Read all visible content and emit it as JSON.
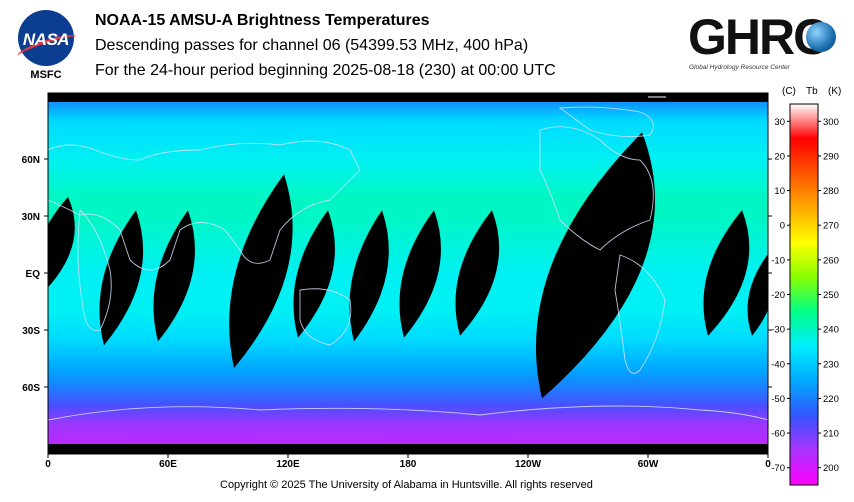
{
  "header": {
    "title": "NOAA-15 AMSU-A Brightness Temperatures",
    "subtitle": "Descending passes for channel 06 (54399.53 MHz, 400 hPa)",
    "period": "For the 24-hour period beginning 2025-08-18 (230) at 00:00 UTC"
  },
  "logos": {
    "nasa_text": "NASA",
    "msfc_text": "MSFC",
    "ghrc_text": "GHRC",
    "ghrc_subtext": "Global Hydrology Resource Center"
  },
  "chart_data": {
    "type": "heatmap",
    "title": "NOAA-15 AMSU-A Brightness Temperatures",
    "x_tick_labels": [
      "0",
      "60E",
      "120E",
      "180",
      "120W",
      "60W",
      "0"
    ],
    "x_tick_longitudes": [
      0,
      60,
      120,
      180,
      240,
      300,
      360
    ],
    "y_tick_labels": [
      "60N",
      "30N",
      "EQ",
      "30S",
      "60S"
    ],
    "y_tick_latitudes": [
      60,
      30,
      0,
      -30,
      -60
    ],
    "xlim": [
      0,
      360
    ],
    "ylim": [
      -90,
      90
    ],
    "colorbar": {
      "header_c": "(C)",
      "header_tb": "Tb",
      "header_k": "(K)",
      "celsius_ticks": [
        "30",
        "20",
        "10",
        "0",
        "-10",
        "-20",
        "-30",
        "-40",
        "-50",
        "-60",
        "-70"
      ],
      "celsius_values": [
        30,
        20,
        10,
        0,
        -10,
        -20,
        -30,
        -40,
        -50,
        -60,
        -70
      ],
      "kelvin_ticks": [
        "300",
        "290",
        "280",
        "270",
        "260",
        "250",
        "240",
        "230",
        "220",
        "210",
        "200"
      ],
      "kelvin_values": [
        300,
        290,
        280,
        270,
        260,
        250,
        240,
        230,
        220,
        210,
        200
      ],
      "range_k": [
        195,
        305
      ],
      "colors": [
        "#ff00ff",
        "#aa33ff",
        "#3355ff",
        "#00aaff",
        "#00eeff",
        "#00ff88",
        "#88ff00",
        "#ffff00",
        "#ffaa00",
        "#ff5500",
        "#ff0000",
        "#ffffff"
      ]
    },
    "field_rows": [
      {
        "lat": 90,
        "kelvin": 222
      },
      {
        "lat": 80,
        "kelvin": 232
      },
      {
        "lat": 60,
        "kelvin": 236
      },
      {
        "lat": 40,
        "kelvin": 240
      },
      {
        "lat": 30,
        "kelvin": 240
      },
      {
        "lat": 15,
        "kelvin": 238
      },
      {
        "lat": 0,
        "kelvin": 236
      },
      {
        "lat": -20,
        "kelvin": 236
      },
      {
        "lat": -35,
        "kelvin": 232
      },
      {
        "lat": -50,
        "kelvin": 225
      },
      {
        "lat": -60,
        "kelvin": 220
      },
      {
        "lat": -70,
        "kelvin": 213
      },
      {
        "lat": -80,
        "kelvin": 206
      },
      {
        "lat": -90,
        "kelvin": 203
      }
    ],
    "swath_gaps": [
      {
        "lon_north": 10,
        "lon_south": -4,
        "lat_top": 40,
        "lat_bottom": -12
      },
      {
        "lon_north": 44,
        "lon_south": 28,
        "lat_top": 33,
        "lat_bottom": -38
      },
      {
        "lon_north": 70,
        "lon_south": 55,
        "lat_top": 33,
        "lat_bottom": -36
      },
      {
        "lon_north": 118,
        "lon_south": 93,
        "lat_top": 52,
        "lat_bottom": -50
      },
      {
        "lon_north": 140,
        "lon_south": 125,
        "lat_top": 33,
        "lat_bottom": -34
      },
      {
        "lon_north": 167,
        "lon_south": 153,
        "lat_top": 33,
        "lat_bottom": -36
      },
      {
        "lon_north": 193,
        "lon_south": 178,
        "lat_top": 33,
        "lat_bottom": -34
      },
      {
        "lon_north": 222,
        "lon_south": 206,
        "lat_top": 33,
        "lat_bottom": -33
      },
      {
        "lon_north": 297,
        "lon_south": 247,
        "lat_top": 74,
        "lat_bottom": -66
      },
      {
        "lon_north": 347,
        "lon_south": 330,
        "lat_top": 33,
        "lat_bottom": -33
      },
      {
        "lon_north": 360,
        "lon_south": 352,
        "lat_top": 10,
        "lat_bottom": -33
      }
    ]
  },
  "footer": {
    "copyright": "Copyright © 2025 The University of Alabama in Huntsville.  All rights reserved"
  }
}
